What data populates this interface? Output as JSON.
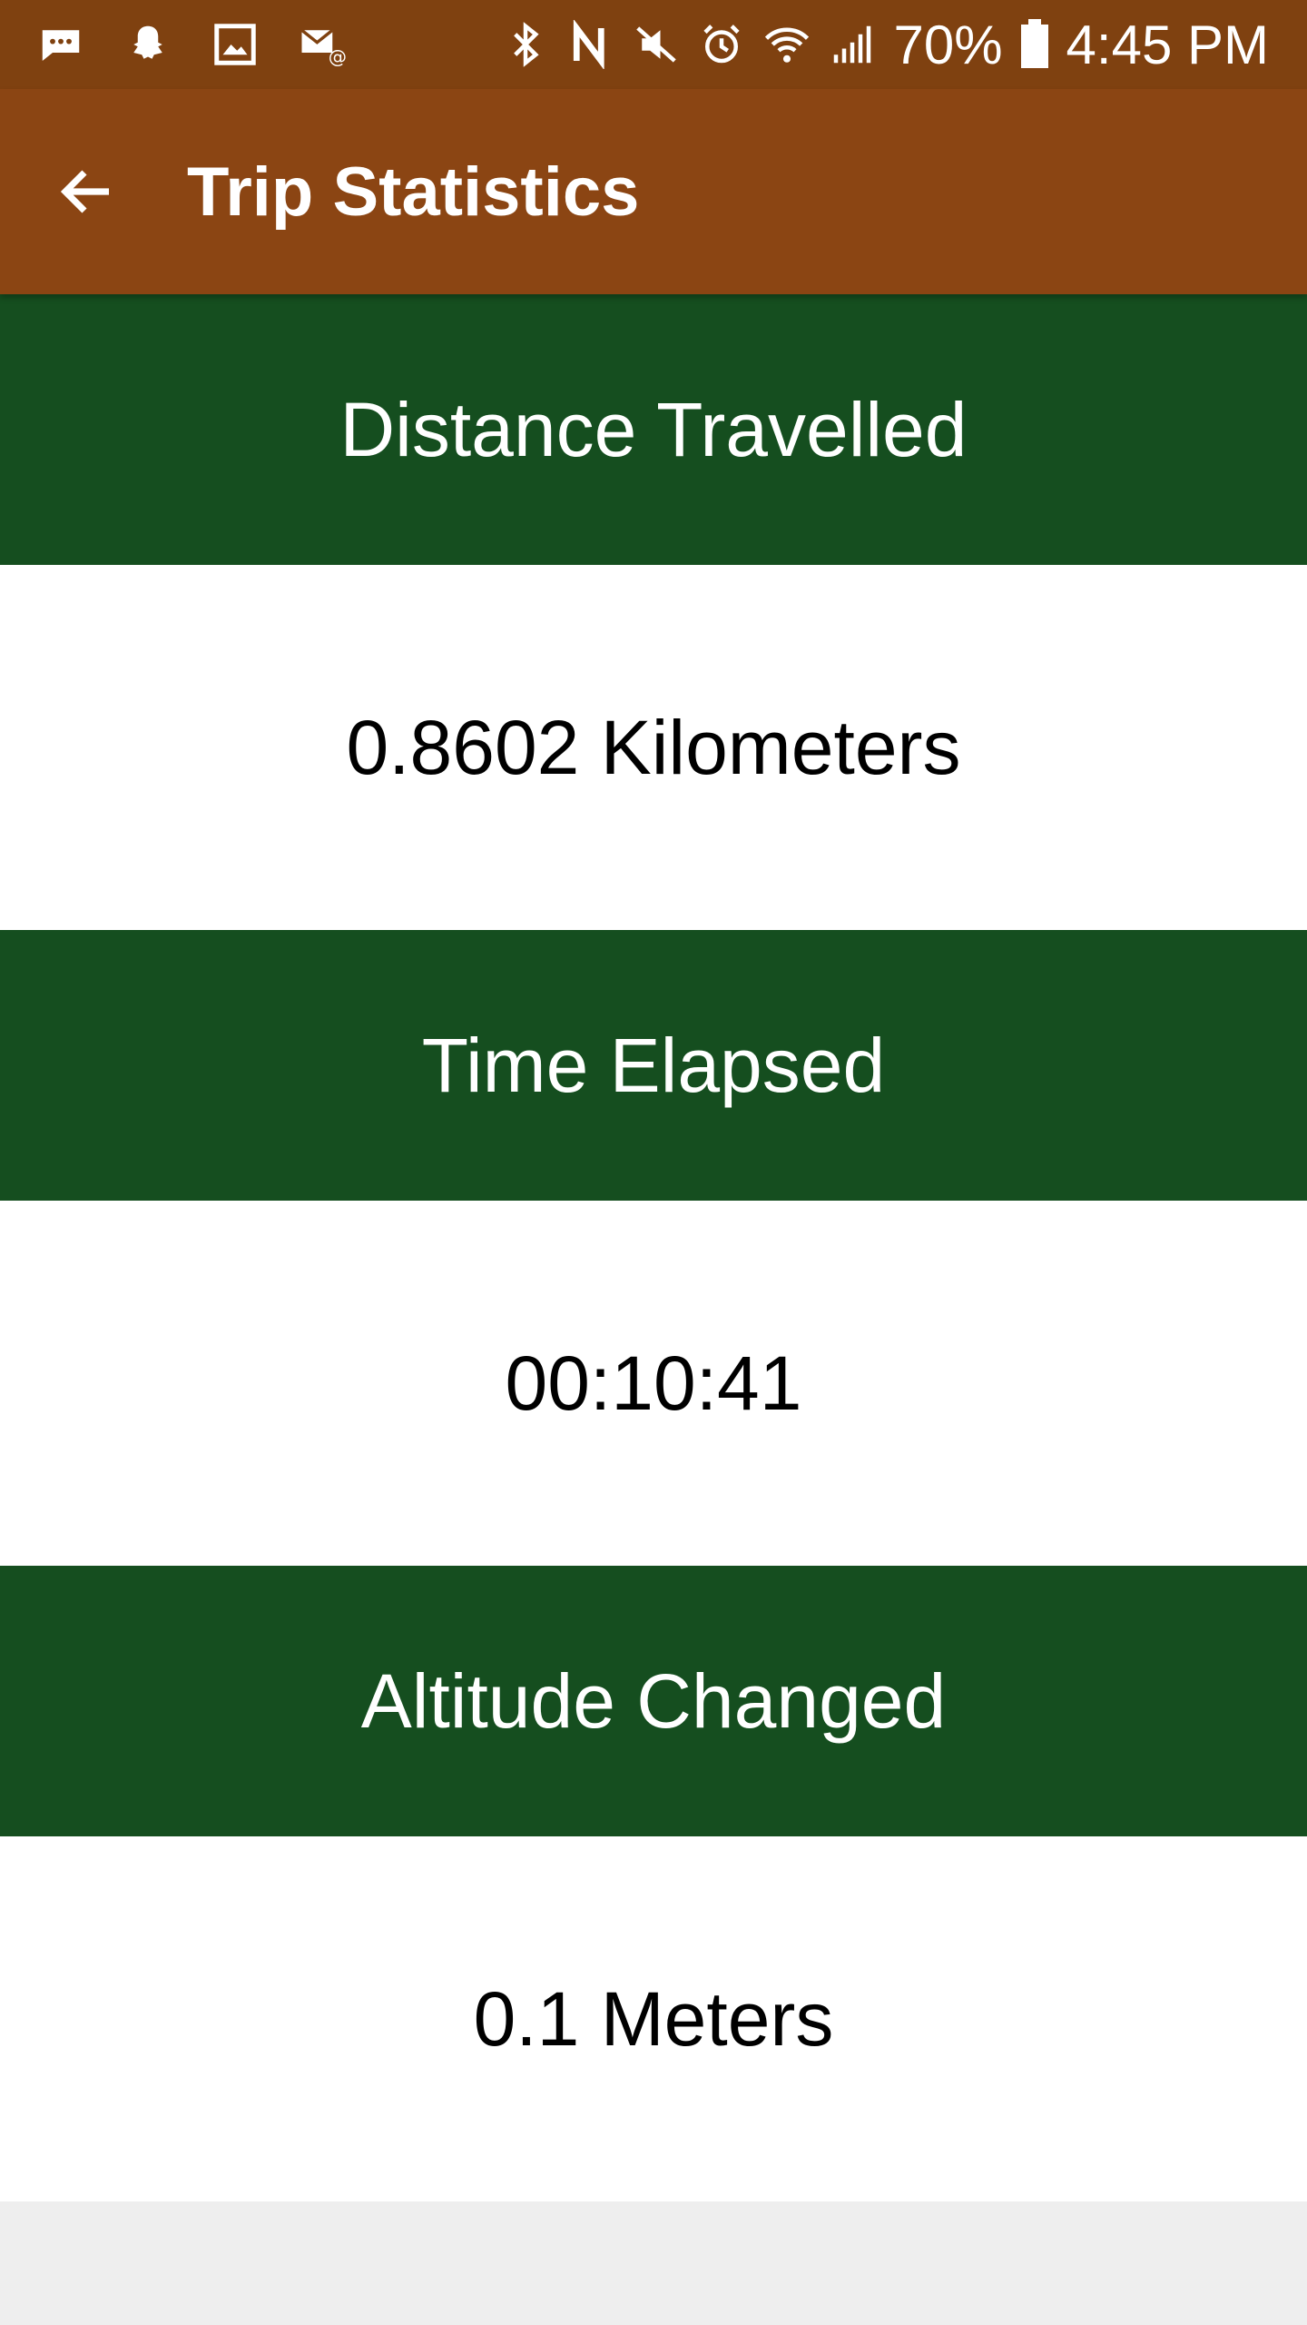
{
  "status_bar": {
    "icons_left": [
      "message-icon",
      "snapchat-icon",
      "gallery-icon",
      "email-icon"
    ],
    "icons_right": [
      "bluetooth-icon",
      "nfc-icon",
      "mute-icon",
      "alarm-icon",
      "wifi-icon",
      "signal-icon"
    ],
    "battery_percent": "70%",
    "time": "4:45 PM"
  },
  "app_bar": {
    "title": "Trip Statistics",
    "back_icon": "arrow-back-icon"
  },
  "stats": [
    {
      "label": "Distance Travelled",
      "value": "0.8602 Kilometers"
    },
    {
      "label": "Time Elapsed",
      "value": "00:10:41"
    },
    {
      "label": "Altitude Changed",
      "value": "0.1 Meters"
    }
  ],
  "colors": {
    "status_bar": "#7f4110",
    "app_bar": "#8b4513",
    "section_header": "#154e1f",
    "value_background": "#ffffff",
    "page_background": "#eeeeee"
  }
}
